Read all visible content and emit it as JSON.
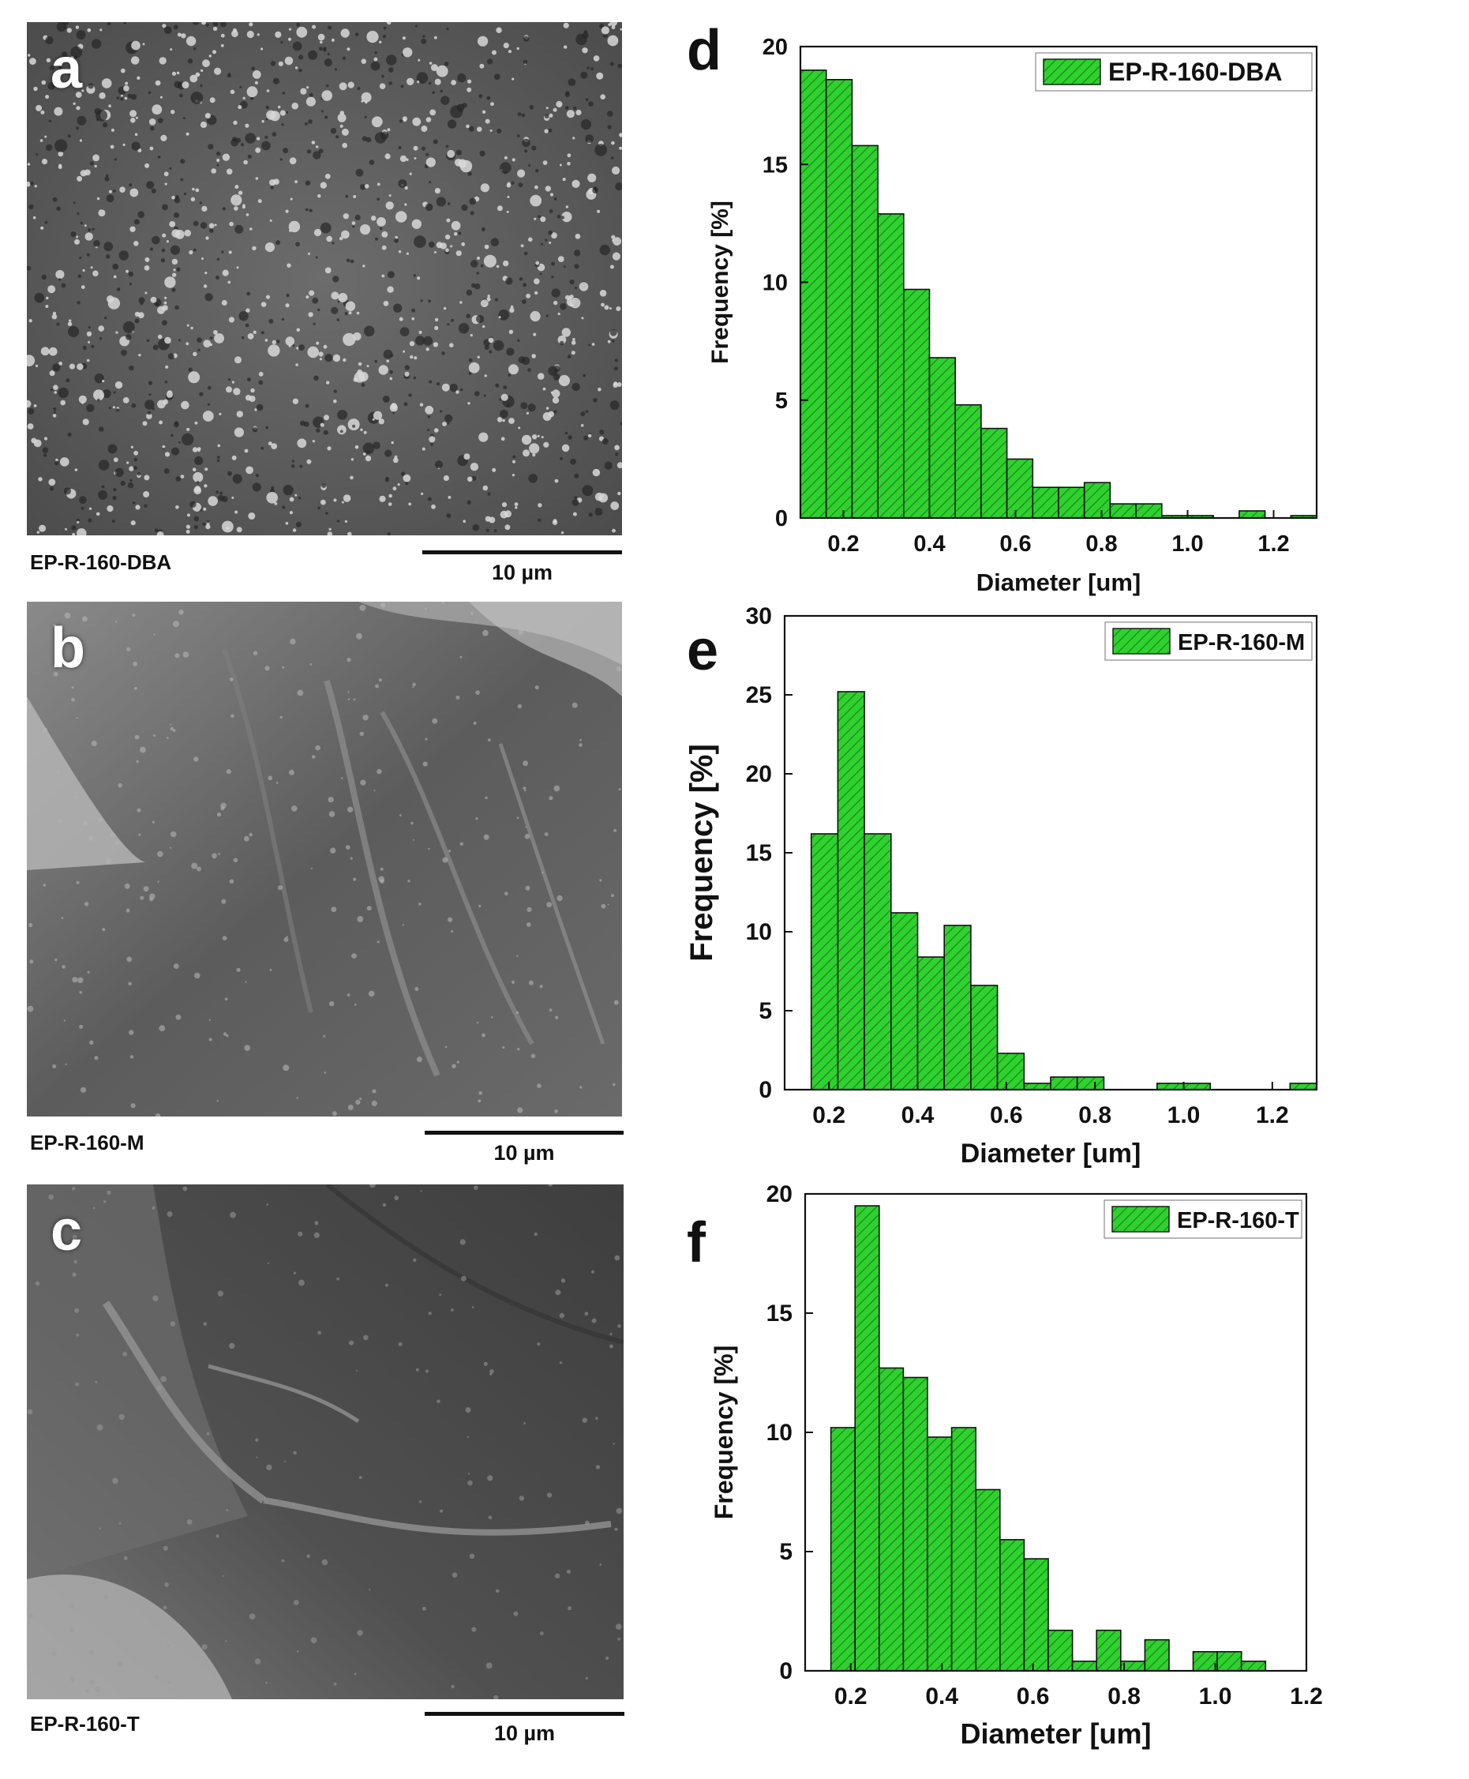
{
  "panels": [
    {
      "letter": "a",
      "sample": "EP-R-160-DBA",
      "scale": "10 µm"
    },
    {
      "letter": "b",
      "sample": "EP-R-160-M",
      "scale": "10 µm"
    },
    {
      "letter": "c",
      "sample": "EP-R-160-T",
      "scale": "10 µm"
    }
  ],
  "chart_data": [
    {
      "type": "bar",
      "panel_letter": "d",
      "title": "",
      "xlabel": "Diameter [um]",
      "ylabel": "Frequency [%]",
      "xlim": [
        0.1,
        1.3
      ],
      "ylim": [
        0,
        20
      ],
      "xticks": [
        "0.2",
        "0.4",
        "0.6",
        "0.8",
        "1.0",
        "1.2"
      ],
      "yticks": [
        "0",
        "5",
        "10",
        "15",
        "20"
      ],
      "bin_width": 0.06,
      "x": [
        0.13,
        0.19,
        0.25,
        0.31,
        0.37,
        0.43,
        0.49,
        0.55,
        0.61,
        0.67,
        0.73,
        0.79,
        0.85,
        0.91,
        0.97,
        1.03,
        1.09,
        1.15,
        1.21,
        1.27
      ],
      "series": [
        {
          "name": "EP-R-160-DBA",
          "values": [
            19.0,
            18.6,
            15.8,
            12.9,
            9.7,
            6.8,
            4.8,
            3.8,
            2.5,
            1.3,
            1.3,
            1.5,
            0.6,
            0.6,
            0.1,
            0.1,
            0.0,
            0.3,
            0.0,
            0.1
          ]
        }
      ],
      "legend": "top-right",
      "bar_color": "#2ed12e"
    },
    {
      "type": "bar",
      "panel_letter": "e",
      "title": "",
      "xlabel": "Diameter [um]",
      "ylabel": "Frequency [%]",
      "xlim": [
        0.1,
        1.3
      ],
      "ylim": [
        0,
        30
      ],
      "xticks": [
        "0.2",
        "0.4",
        "0.6",
        "0.8",
        "1.0",
        "1.2"
      ],
      "yticks": [
        "0",
        "5",
        "10",
        "15",
        "20",
        "25",
        "30"
      ],
      "bin_width": 0.06,
      "x": [
        0.19,
        0.25,
        0.31,
        0.37,
        0.43,
        0.49,
        0.55,
        0.61,
        0.67,
        0.73,
        0.79,
        0.85,
        0.91,
        0.97,
        1.03,
        1.09,
        1.15,
        1.21,
        1.27
      ],
      "series": [
        {
          "name": "EP-R-160-M",
          "values": [
            16.2,
            25.2,
            16.2,
            11.2,
            8.4,
            10.4,
            6.6,
            2.3,
            0.4,
            0.8,
            0.8,
            0.0,
            0.0,
            0.4,
            0.4,
            0.0,
            0.0,
            0.0,
            0.4
          ]
        }
      ],
      "legend": "top-right",
      "bar_color": "#2ed12e"
    },
    {
      "type": "bar",
      "panel_letter": "f",
      "title": "",
      "xlabel": "Diameter [um]",
      "ylabel": "Frequency [%]",
      "xlim": [
        0.1,
        1.2
      ],
      "ylim": [
        0,
        20
      ],
      "xticks": [
        "0.2",
        "0.4",
        "0.6",
        "0.8",
        "1.0",
        "1.2"
      ],
      "yticks": [
        "0",
        "5",
        "10",
        "15",
        "20"
      ],
      "bin_width": 0.053,
      "x": [
        0.183,
        0.236,
        0.289,
        0.342,
        0.395,
        0.448,
        0.501,
        0.554,
        0.607,
        0.66,
        0.713,
        0.766,
        0.819,
        0.872,
        0.925,
        0.978,
        1.031,
        1.084,
        1.137
      ],
      "series": [
        {
          "name": "EP-R-160-T",
          "values": [
            10.2,
            19.5,
            12.7,
            12.3,
            9.8,
            10.2,
            7.6,
            5.5,
            4.7,
            1.7,
            0.4,
            1.7,
            0.4,
            1.3,
            0.0,
            0.8,
            0.8,
            0.4,
            0.0
          ]
        }
      ],
      "legend": "top-right",
      "bar_color": "#2ed12e"
    }
  ]
}
